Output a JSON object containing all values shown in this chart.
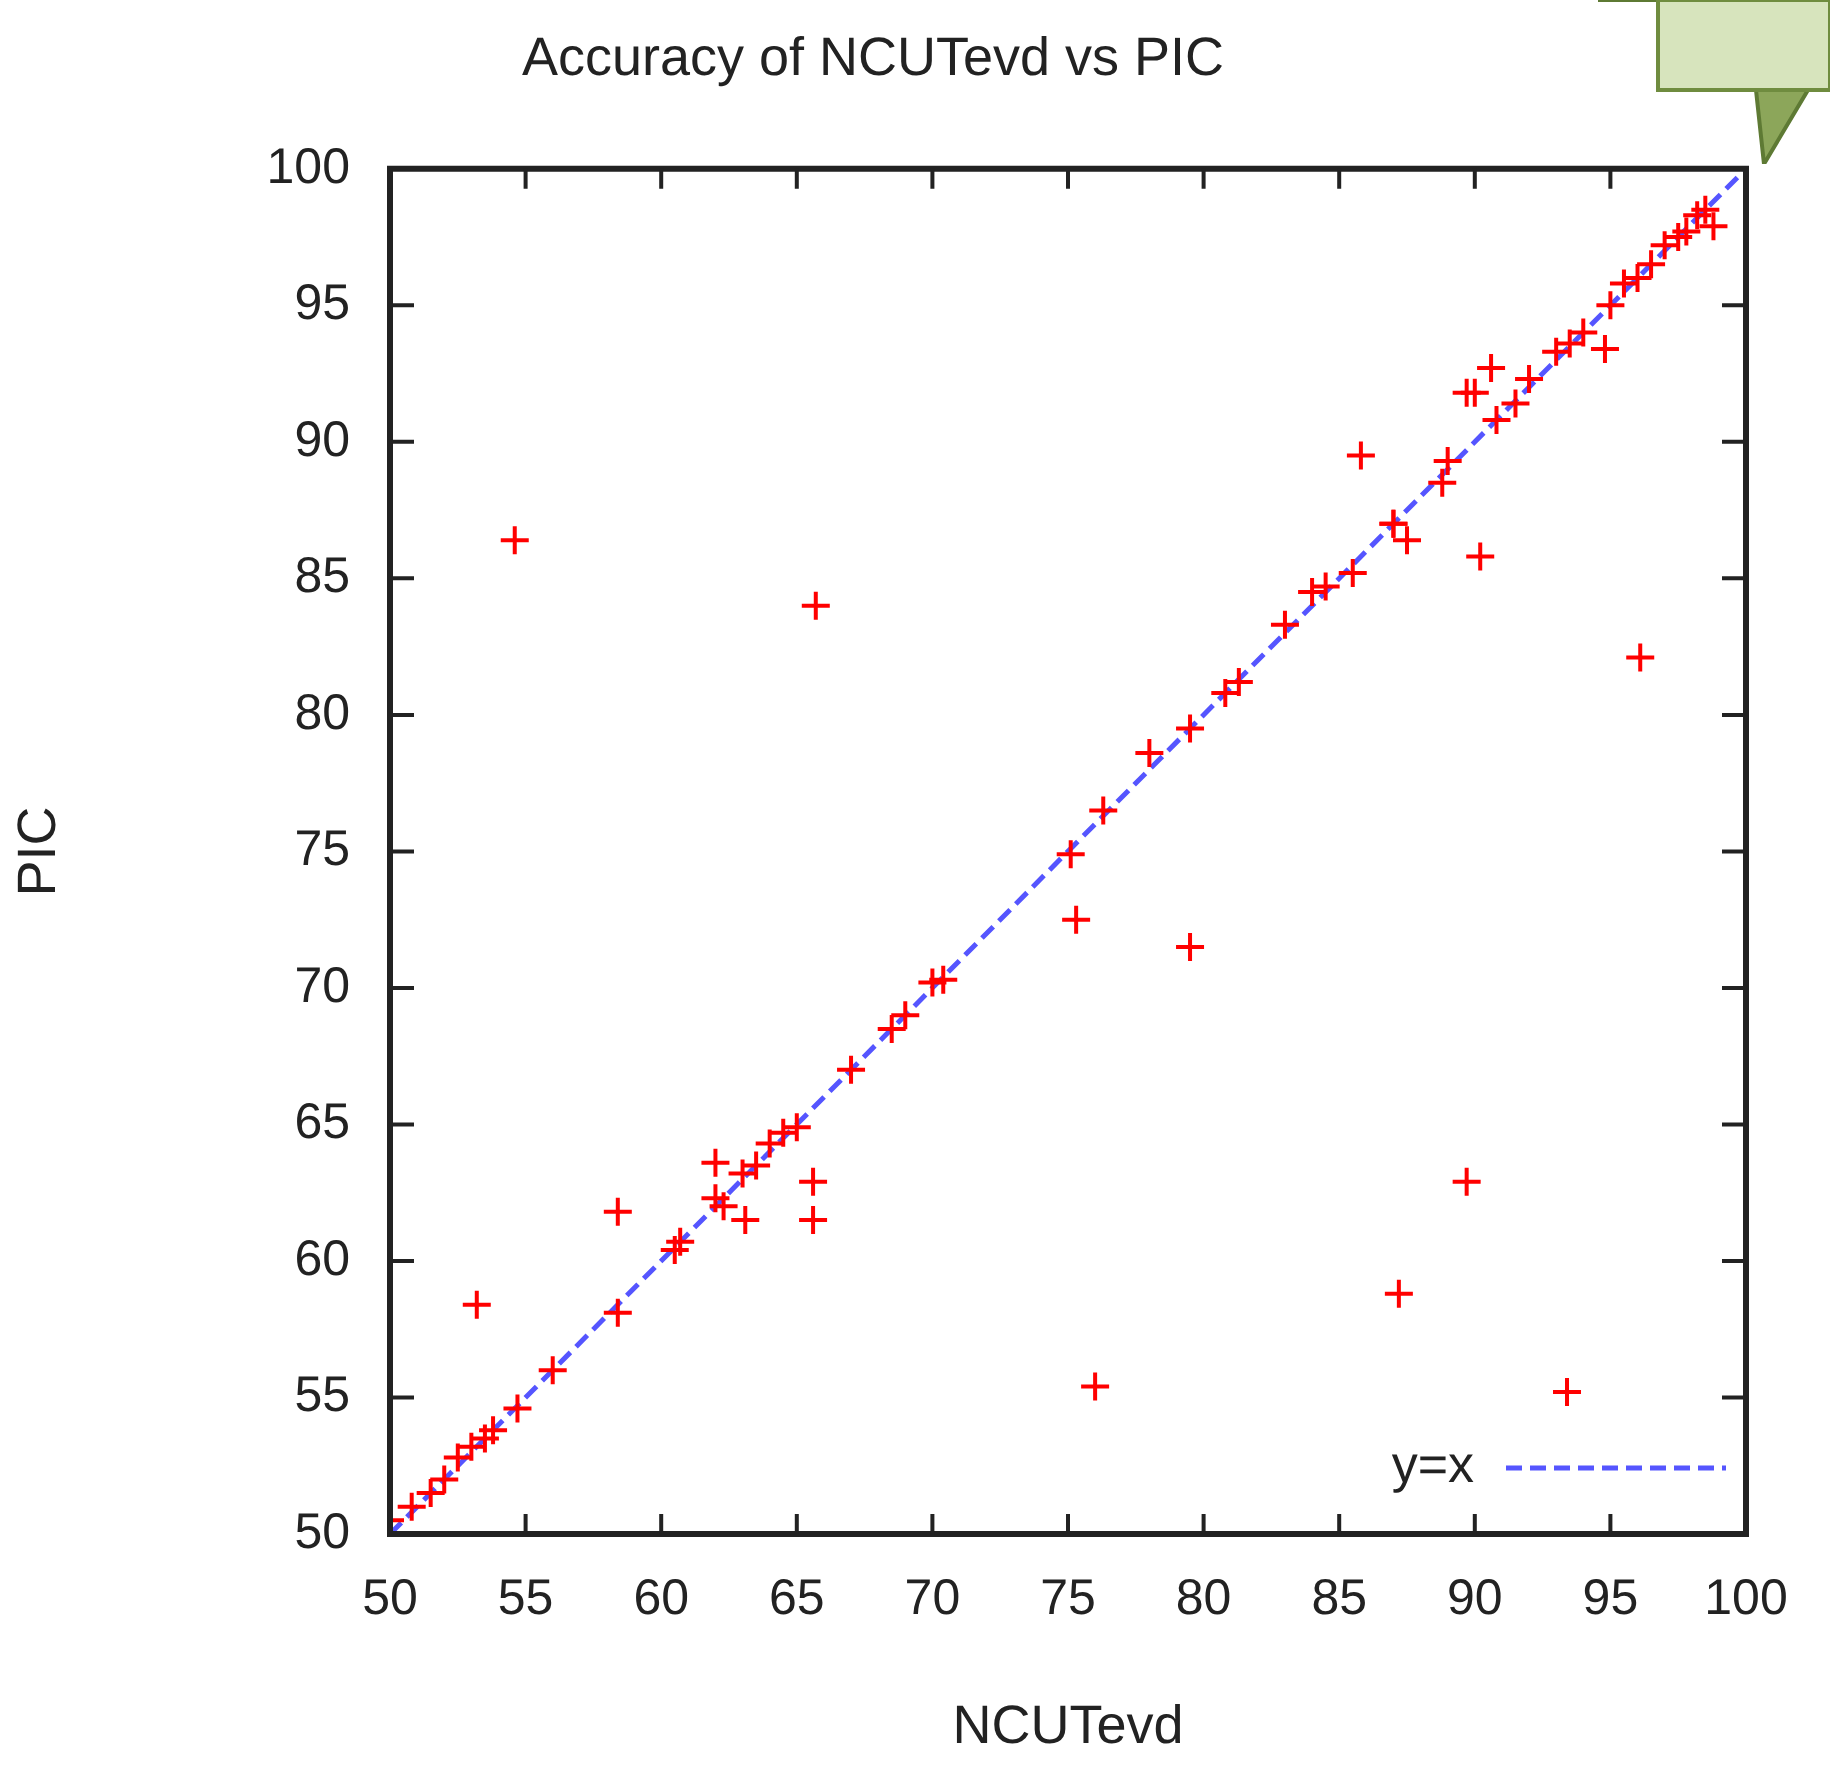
{
  "chart_data": {
    "type": "scatter",
    "title": "Accuracy of NCUTevd vs PIC",
    "xlabel": "NCUTevd",
    "ylabel": "PIC",
    "xlim": [
      50,
      100
    ],
    "ylim": [
      50,
      100
    ],
    "xticks": [
      50,
      55,
      60,
      65,
      70,
      75,
      80,
      85,
      90,
      95,
      100
    ],
    "yticks": [
      50,
      55,
      60,
      65,
      70,
      75,
      80,
      85,
      90,
      95,
      100
    ],
    "grid": false,
    "legend": "bottom right",
    "marker": "cross",
    "series": [
      {
        "color": "#ff0000",
        "x": [
          54.6,
          65.7,
          53.2,
          58.4,
          62.0,
          63.1,
          65.6,
          65.6,
          58.4,
          75.3,
          79.5,
          89.7,
          87.2,
          76.0,
          93.4,
          85.8,
          90.6,
          89.7,
          90.0,
          90.2,
          96.1,
          87.5,
          87.0,
          94.8,
          98.8,
          50.0,
          50.8,
          51.5,
          52.0,
          52.5,
          53.0,
          53.5,
          53.8,
          54.7,
          56.0,
          60.5,
          60.7,
          62.0,
          62.3,
          63.0,
          63.5,
          64.0,
          64.5,
          65.0,
          67.0,
          68.5,
          69.0,
          70.0,
          70.4,
          75.1,
          76.3,
          78.0,
          79.5,
          80.8,
          81.3,
          83.0,
          84.0,
          84.5,
          85.5,
          87.0,
          88.8,
          89.0,
          90.8,
          91.5,
          92.0,
          93.0,
          93.5,
          94.0,
          95.0,
          95.5,
          96.0,
          96.5,
          97.0,
          97.5,
          97.8,
          98.2,
          98.5
        ],
        "values": [
          86.4,
          84.0,
          58.4,
          61.8,
          63.6,
          61.5,
          62.9,
          61.5,
          58.1,
          72.5,
          71.5,
          62.9,
          58.8,
          55.4,
          55.2,
          89.5,
          92.7,
          91.8,
          91.8,
          85.8,
          82.1,
          86.4,
          87.0,
          93.4,
          97.9,
          50.5,
          51.0,
          51.5,
          52.0,
          52.8,
          53.2,
          53.5,
          53.8,
          54.6,
          56.0,
          60.4,
          60.7,
          62.3,
          62.0,
          63.2,
          63.5,
          64.3,
          64.7,
          64.9,
          67.0,
          68.5,
          69.0,
          70.2,
          70.3,
          74.9,
          76.5,
          78.6,
          79.5,
          80.8,
          81.2,
          83.3,
          84.5,
          84.7,
          85.2,
          87.0,
          88.5,
          89.3,
          90.8,
          91.4,
          92.3,
          93.3,
          93.6,
          94.0,
          95.0,
          95.8,
          96.0,
          96.5,
          97.2,
          97.5,
          97.7,
          98.3,
          98.5
        ]
      },
      {
        "type": "line",
        "name": "y=x",
        "color": "#5555ff",
        "line_style": "dashed",
        "marker": "none",
        "x": [
          50,
          100
        ],
        "values": [
          50,
          100
        ]
      }
    ]
  }
}
